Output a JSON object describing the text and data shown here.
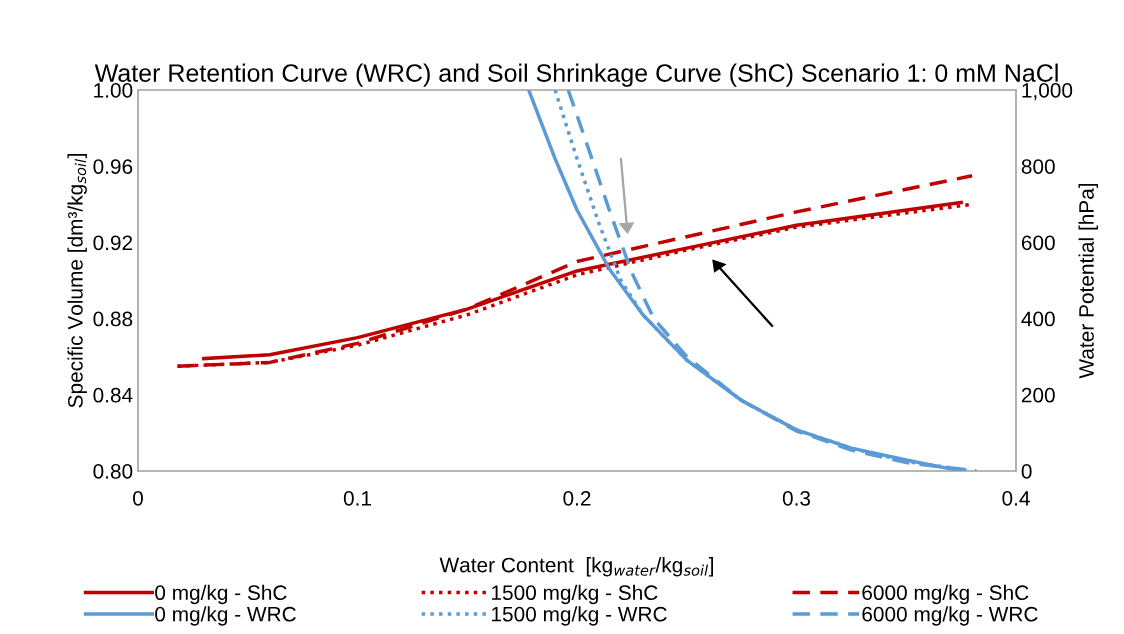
{
  "chart_data": {
    "type": "line",
    "title": "Water Retention Curve (WRC) and Soil Shrinkage Curve (ShC) Scenario 1: 0 mM NaCl",
    "xlabel": "Water Content  [kg$_{water}$/kg$_{soil}$]",
    "ylabel": "Specific Volume [dm³/kg$_{soil}$]",
    "y2label": "Water Potential [hPa]",
    "xlim": [
      0,
      0.4
    ],
    "xticks": [
      0,
      0.1,
      0.2,
      0.3,
      0.4
    ],
    "ylim": [
      0.8,
      1.0
    ],
    "yticks": [
      {
        "value": 0.8,
        "label": "0.80"
      },
      {
        "value": 0.84,
        "label": "0.84"
      },
      {
        "value": 0.88,
        "label": "0.88"
      },
      {
        "value": 0.92,
        "label": "0.92"
      },
      {
        "value": 0.96,
        "label": "0.96"
      },
      {
        "value": 1.0,
        "label": "1.00"
      }
    ],
    "y2lim": [
      0,
      1000
    ],
    "y2ticks": [
      0,
      200,
      400,
      600,
      800,
      {
        "value": 1000,
        "label": "1,000"
      }
    ],
    "grid": false,
    "legend": "bottom",
    "marker": "none",
    "series": [
      {
        "name": "0 mg/kg - ShC",
        "color": "#c00000",
        "line_style": "solid",
        "x": [
          0.03,
          0.06,
          0.1,
          0.15,
          0.2,
          0.25,
          0.3,
          0.375
        ],
        "values": [
          0.859,
          0.861,
          0.87,
          0.885,
          0.905,
          0.917,
          0.929,
          0.941
        ]
      },
      {
        "name": "1500 mg/kg - ShC",
        "color": "#c00000",
        "line_style": "dotted",
        "x": [
          0.018,
          0.06,
          0.1,
          0.15,
          0.2,
          0.25,
          0.3,
          0.38
        ],
        "values": [
          0.855,
          0.857,
          0.866,
          0.882,
          0.903,
          0.916,
          0.928,
          0.94
        ]
      },
      {
        "name": "6000 mg/kg - ShC",
        "color": "#c00000",
        "line_style": "dashed",
        "x": [
          0.018,
          0.06,
          0.1,
          0.15,
          0.2,
          0.25,
          0.3,
          0.38
        ],
        "values": [
          0.855,
          0.857,
          0.867,
          0.885,
          0.91,
          0.923,
          0.936,
          0.955
        ]
      },
      {
        "name": "0 mg/kg - WRC",
        "color": "#5b9bd5",
        "line_style": "solid",
        "axis": "y2",
        "x": [
          0.178,
          0.19,
          0.2,
          0.215,
          0.23,
          0.25,
          0.275,
          0.3,
          0.325,
          0.35,
          0.375
        ],
        "values": [
          1000,
          820,
          685,
          528,
          410,
          291,
          185,
          108,
          60,
          29,
          0
        ]
      },
      {
        "name": "1500 mg/kg - WRC",
        "color": "#5b9bd5",
        "line_style": "dotted",
        "axis": "y2",
        "x": [
          0.19,
          0.2,
          0.21,
          0.22,
          0.23,
          0.25,
          0.275,
          0.3,
          0.325,
          0.35,
          0.38
        ],
        "values": [
          1000,
          820,
          650,
          500,
          410,
          291,
          185,
          108,
          60,
          25,
          0
        ]
      },
      {
        "name": "6000 mg/kg - WRC",
        "color": "#5b9bd5",
        "line_style": "dashed",
        "axis": "y2",
        "x": [
          0.196,
          0.205,
          0.215,
          0.225,
          0.235,
          0.25,
          0.275,
          0.3,
          0.325,
          0.35,
          0.382
        ],
        "values": [
          1000,
          850,
          680,
          520,
          400,
          300,
          185,
          105,
          55,
          22,
          0
        ]
      }
    ]
  }
}
